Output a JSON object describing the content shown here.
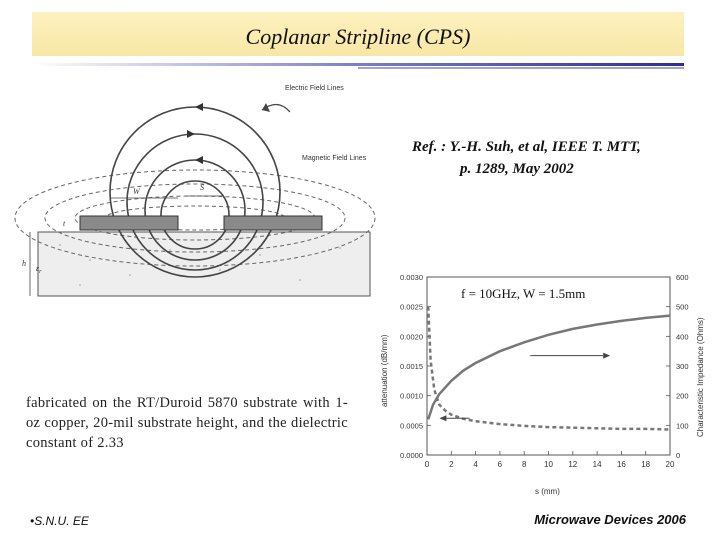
{
  "title": "Coplanar Stripline (CPS)",
  "reference": {
    "line1": "Ref. : Y.-H. Suh, et al, IEEE T. MTT,",
    "line2": "p. 1289, May 2002"
  },
  "figure": {
    "labels": {
      "electric": "Electric Field Lines",
      "magnetic": "Magnetic Field Lines",
      "w": "W",
      "s": "S",
      "t": "t",
      "h": "h",
      "er": "ε<sub>r</sub>"
    }
  },
  "chart_data": {
    "type": "line",
    "annotation": "f = 10GHz, W = 1.5mm",
    "xlabel": "s (mm)",
    "ylabel_left": "attenuation (dB/mm)",
    "ylabel_right": "Characteristic Impedance (Ohms)",
    "xlim": [
      0,
      20
    ],
    "ylim_left": [
      0,
      0.003
    ],
    "ylim_right": [
      0,
      600
    ],
    "x_ticks": [
      0,
      2,
      4,
      6,
      8,
      10,
      12,
      14,
      16,
      18,
      20
    ],
    "y_ticks_left": [
      "0.0000",
      "0.0005",
      "0.0010",
      "0.0015",
      "0.0020",
      "0.0025",
      "0.0030"
    ],
    "y_ticks_right": [
      0,
      100,
      200,
      300,
      400,
      500,
      600
    ],
    "series": [
      {
        "style": "solid",
        "axis": "right",
        "x": [
          0.1,
          0.5,
          1,
          2,
          3,
          4,
          6,
          8,
          10,
          12,
          14,
          16,
          18,
          20
        ],
        "y": [
          120,
          170,
          205,
          250,
          285,
          310,
          350,
          380,
          405,
          425,
          440,
          452,
          462,
          470
        ]
      },
      {
        "style": "dashed",
        "axis": "left",
        "x": [
          0.1,
          0.3,
          0.6,
          1,
          1.5,
          2,
          3,
          4,
          6,
          8,
          10,
          12,
          14,
          16,
          18,
          20
        ],
        "y": [
          0.0025,
          0.0016,
          0.0011,
          0.00085,
          0.00075,
          0.00068,
          0.00061,
          0.00057,
          0.00052,
          0.00049,
          0.00047,
          0.00046,
          0.00045,
          0.00044,
          0.00044,
          0.00043
        ]
      }
    ]
  },
  "note": "fabricated on the RT/Duroid 5870 substrate with 1-oz copper, 20-mil substrate height, and the dielectric constant of 2.33",
  "footer": {
    "left": "•S.N.U. EE",
    "right": "Microwave Devices 2006"
  }
}
